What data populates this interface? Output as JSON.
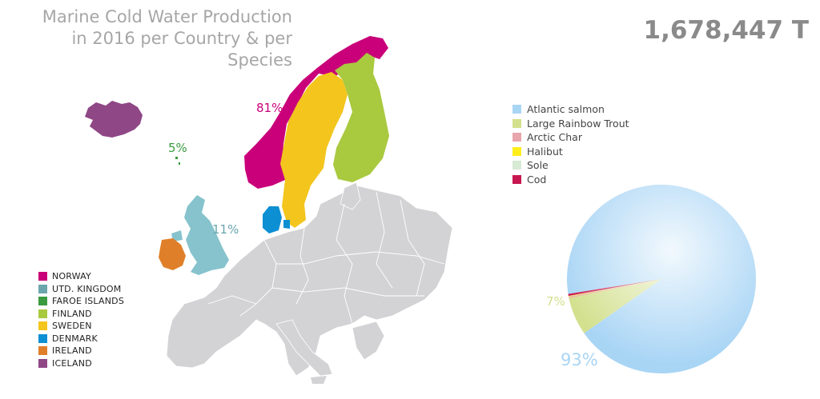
{
  "title": {
    "line1": "Marine Cold Water Production",
    "line2": "in 2016 per Country & per Species"
  },
  "total": "1,678,447 T",
  "colors": {
    "norway": "#c9007a",
    "uk": "#86c3cd",
    "faroe": "#3a9a3f",
    "finland": "#a9c93f",
    "sweden": "#f3c51d",
    "denmark": "#0c8fd3",
    "ireland": "#e07f2a",
    "iceland": "#8f4786",
    "europe": "#d3d3d5",
    "atlantic_salmon": "#a9d5f5",
    "rainbow_trout": "#d3e08e",
    "arctic_char": "#e9a5ac",
    "halibut": "#ffee1b",
    "sole": "#d6ead4",
    "cod": "#c7174f"
  },
  "map_labels": {
    "norway": "81%",
    "faroe": "5%",
    "uk": "11%"
  },
  "country_legend": [
    {
      "label": "NORWAY",
      "color": "#c9007a"
    },
    {
      "label": "UTD. KINGDOM",
      "color": "#6aa6ac"
    },
    {
      "label": "FAROE ISLANDS",
      "color": "#3a9a3f"
    },
    {
      "label": "FINLAND",
      "color": "#a9c93f"
    },
    {
      "label": "SWEDEN",
      "color": "#f3c51d"
    },
    {
      "label": "DENMARK",
      "color": "#0c8fd3"
    },
    {
      "label": "IRELAND",
      "color": "#e07f2a"
    },
    {
      "label": "ICELAND",
      "color": "#8f4786"
    }
  ],
  "chart_data": {
    "type": "pie",
    "title": "Marine Cold Water Production in 2016 per Country & per Species",
    "total_label": "1,678,447 T",
    "series": [
      {
        "name": "Atlantic salmon",
        "value": 92.8,
        "color": "#a9d5f5"
      },
      {
        "name": "Large Rainbow Trout",
        "value": 6.5,
        "color": "#d3e08e"
      },
      {
        "name": "Arctic Char",
        "value": 0.2,
        "color": "#e9a5ac"
      },
      {
        "name": "Halibut",
        "value": 0.1,
        "color": "#ffee1b"
      },
      {
        "name": "Sole",
        "value": 0.05,
        "color": "#d6ead4"
      },
      {
        "name": "Cod",
        "value": 0.35,
        "color": "#c7174f"
      }
    ],
    "data_labels": [
      {
        "series": "Atlantic salmon",
        "text": "93%"
      },
      {
        "series": "Large Rainbow Trout",
        "text": "7%"
      }
    ],
    "legend_placement": "top-left of pie"
  }
}
